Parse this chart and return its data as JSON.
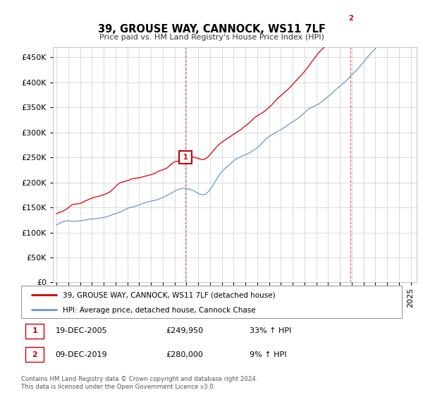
{
  "title": "39, GROUSE WAY, CANNOCK, WS11 7LF",
  "subtitle": "Price paid vs. HM Land Registry's House Price Index (HPI)",
  "ylabel_ticks": [
    "£0",
    "£50K",
    "£100K",
    "£150K",
    "£200K",
    "£250K",
    "£300K",
    "£350K",
    "£400K",
    "£450K"
  ],
  "ytick_vals": [
    0,
    50000,
    100000,
    150000,
    200000,
    250000,
    300000,
    350000,
    400000,
    450000
  ],
  "ylim": [
    0,
    470000
  ],
  "sale1_date_label": "19-DEC-2005",
  "sale1_price": 249950,
  "sale1_hpi": "33% ↑ HPI",
  "sale2_date_label": "09-DEC-2019",
  "sale2_price": 280000,
  "sale2_hpi": "9% ↑ HPI",
  "legend_line1": "39, GROUSE WAY, CANNOCK, WS11 7LF (detached house)",
  "legend_line2": "HPI: Average price, detached house, Cannock Chase",
  "footer": "Contains HM Land Registry data © Crown copyright and database right 2024.\nThis data is licensed under the Open Government Licence v3.0.",
  "line1_color": "#cc0000",
  "line2_color": "#6699cc",
  "background_color": "#ffffff",
  "grid_color": "#cccccc",
  "vline_color": "#cc0000",
  "marker_box_color": "#cc0000",
  "xstart_year": 1995,
  "xend_year": 2025
}
